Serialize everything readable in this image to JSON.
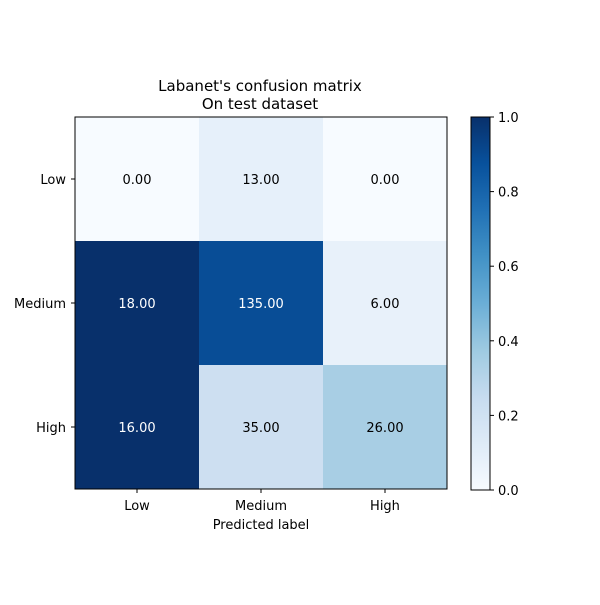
{
  "chart_data": {
    "type": "heatmap",
    "title": "Labanet's confusion matrix",
    "subtitle": "On test dataset",
    "xlabel": "Predicted label",
    "ylabel": "",
    "x_categories": [
      "Low",
      "Medium",
      "High"
    ],
    "y_categories": [
      "Low",
      "Medium",
      "High"
    ],
    "values": [
      [
        0.0,
        13.0,
        0.0
      ],
      [
        18.0,
        135.0,
        6.0
      ],
      [
        16.0,
        35.0,
        26.0
      ]
    ],
    "value_labels": [
      [
        "0.00",
        "13.00",
        "0.00"
      ],
      [
        "18.00",
        "135.00",
        "6.00"
      ],
      [
        "16.00",
        "35.00",
        "26.00"
      ]
    ],
    "cell_color_values": [
      [
        0.0,
        0.085,
        0.0
      ],
      [
        1.0,
        0.89,
        0.075
      ],
      [
        1.0,
        0.215,
        0.345
      ]
    ],
    "colormap": "Blues",
    "colorbar": {
      "ticks": [
        "0.0",
        "0.2",
        "0.4",
        "0.6",
        "0.8",
        "1.0"
      ],
      "range": [
        0,
        1
      ]
    },
    "grid": false
  }
}
